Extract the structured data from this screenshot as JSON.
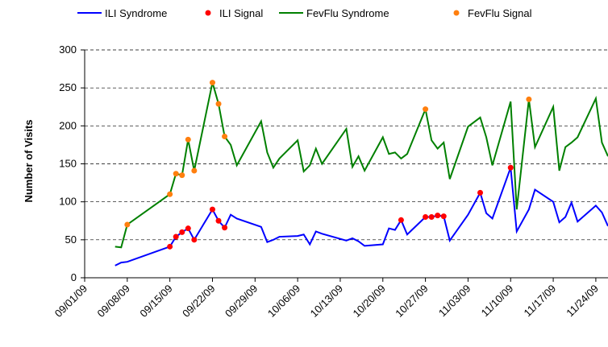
{
  "chart_data": {
    "type": "line",
    "y_label": "Number of Visits",
    "ylim": [
      0,
      300
    ],
    "yticks": [
      0,
      50,
      100,
      150,
      200,
      250,
      300
    ],
    "grid": true,
    "legend": "top",
    "xlim": [
      "2009-09-01",
      "2009-11-26"
    ],
    "xticks": [
      {
        "value": "2009-09-01",
        "label": "09/01/09"
      },
      {
        "value": "2009-09-08",
        "label": "09/08/09"
      },
      {
        "value": "2009-09-15",
        "label": "09/15/09"
      },
      {
        "value": "2009-09-22",
        "label": "09/22/09"
      },
      {
        "value": "2009-09-29",
        "label": "09/29/09"
      },
      {
        "value": "2009-10-06",
        "label": "10/06/09"
      },
      {
        "value": "2009-10-13",
        "label": "10/13/09"
      },
      {
        "value": "2009-10-20",
        "label": "10/20/09"
      },
      {
        "value": "2009-10-27",
        "label": "10/27/09"
      },
      {
        "value": "2009-11-03",
        "label": "11/03/09"
      },
      {
        "value": "2009-11-10",
        "label": "11/10/09"
      },
      {
        "value": "2009-11-17",
        "label": "11/17/09"
      },
      {
        "value": "2009-11-24",
        "label": "11/24/09"
      }
    ],
    "series": [
      {
        "name": "ILI Syndrome",
        "color": "#0000ff",
        "mark": "line",
        "x": [
          "2009-09-06",
          "2009-09-07",
          "2009-09-08",
          "2009-09-15",
          "2009-09-16",
          "2009-09-17",
          "2009-09-18",
          "2009-09-19",
          "2009-09-22",
          "2009-09-23",
          "2009-09-24",
          "2009-09-25",
          "2009-09-26",
          "2009-09-30",
          "2009-10-01",
          "2009-10-02",
          "2009-10-03",
          "2009-10-06",
          "2009-10-07",
          "2009-10-08",
          "2009-10-09",
          "2009-10-10",
          "2009-10-14",
          "2009-10-15",
          "2009-10-16",
          "2009-10-17",
          "2009-10-20",
          "2009-10-21",
          "2009-10-22",
          "2009-10-23",
          "2009-10-24",
          "2009-10-27",
          "2009-10-28",
          "2009-10-29",
          "2009-10-30",
          "2009-10-31",
          "2009-11-03",
          "2009-11-05",
          "2009-11-06",
          "2009-11-07",
          "2009-11-10",
          "2009-11-11",
          "2009-11-13",
          "2009-11-14",
          "2009-11-17",
          "2009-11-18",
          "2009-11-19",
          "2009-11-20",
          "2009-11-21",
          "2009-11-24",
          "2009-11-25",
          "2009-11-26"
        ],
        "values": [
          16,
          20,
          21,
          41,
          54,
          60,
          65,
          50,
          90,
          75,
          66,
          83,
          78,
          67,
          47,
          50,
          54,
          55,
          57,
          44,
          61,
          58,
          49,
          52,
          48,
          42,
          44,
          65,
          63,
          76,
          57,
          80,
          80,
          82,
          81,
          49,
          83,
          112,
          85,
          78,
          145,
          61,
          90,
          116,
          100,
          73,
          80,
          99,
          74,
          95,
          86,
          68
        ]
      },
      {
        "name": "ILI Signal",
        "color": "#ff0000",
        "mark": "dot",
        "x": [
          "2009-09-15",
          "2009-09-16",
          "2009-09-17",
          "2009-09-18",
          "2009-09-19",
          "2009-09-22",
          "2009-09-23",
          "2009-09-24",
          "2009-10-23",
          "2009-10-27",
          "2009-10-28",
          "2009-10-29",
          "2009-10-30",
          "2009-11-05",
          "2009-11-10"
        ],
        "values": [
          41,
          54,
          60,
          65,
          50,
          90,
          75,
          66,
          76,
          80,
          80,
          82,
          81,
          112,
          145
        ]
      },
      {
        "name": "FevFlu Syndrome",
        "color": "#008000",
        "mark": "line",
        "x": [
          "2009-09-06",
          "2009-09-07",
          "2009-09-08",
          "2009-09-15",
          "2009-09-16",
          "2009-09-17",
          "2009-09-18",
          "2009-09-19",
          "2009-09-22",
          "2009-09-23",
          "2009-09-24",
          "2009-09-25",
          "2009-09-26",
          "2009-09-30",
          "2009-10-01",
          "2009-10-02",
          "2009-10-03",
          "2009-10-06",
          "2009-10-07",
          "2009-10-08",
          "2009-10-09",
          "2009-10-10",
          "2009-10-14",
          "2009-10-15",
          "2009-10-16",
          "2009-10-17",
          "2009-10-20",
          "2009-10-21",
          "2009-10-22",
          "2009-10-23",
          "2009-10-24",
          "2009-10-27",
          "2009-10-28",
          "2009-10-29",
          "2009-10-30",
          "2009-10-31",
          "2009-11-03",
          "2009-11-05",
          "2009-11-06",
          "2009-11-07",
          "2009-11-10",
          "2009-11-11",
          "2009-11-13",
          "2009-11-14",
          "2009-11-17",
          "2009-11-18",
          "2009-11-19",
          "2009-11-20",
          "2009-11-21",
          "2009-11-24",
          "2009-11-25",
          "2009-11-26"
        ],
        "values": [
          41,
          40,
          70,
          110,
          137,
          135,
          182,
          141,
          257,
          229,
          186,
          175,
          148,
          206,
          165,
          145,
          157,
          181,
          140,
          148,
          170,
          150,
          196,
          146,
          160,
          141,
          185,
          163,
          165,
          157,
          163,
          222,
          181,
          170,
          178,
          130,
          199,
          211,
          185,
          148,
          232,
          90,
          235,
          172,
          225,
          141,
          172,
          178,
          185,
          236,
          178,
          160
        ]
      },
      {
        "name": "FevFlu Signal",
        "color": "#ff7f0e",
        "mark": "dot",
        "x": [
          "2009-09-08",
          "2009-09-15",
          "2009-09-16",
          "2009-09-17",
          "2009-09-18",
          "2009-09-19",
          "2009-09-22",
          "2009-09-23",
          "2009-09-24",
          "2009-10-27",
          "2009-11-13"
        ],
        "values": [
          70,
          110,
          137,
          135,
          182,
          141,
          257,
          229,
          186,
          222,
          235
        ]
      }
    ]
  }
}
